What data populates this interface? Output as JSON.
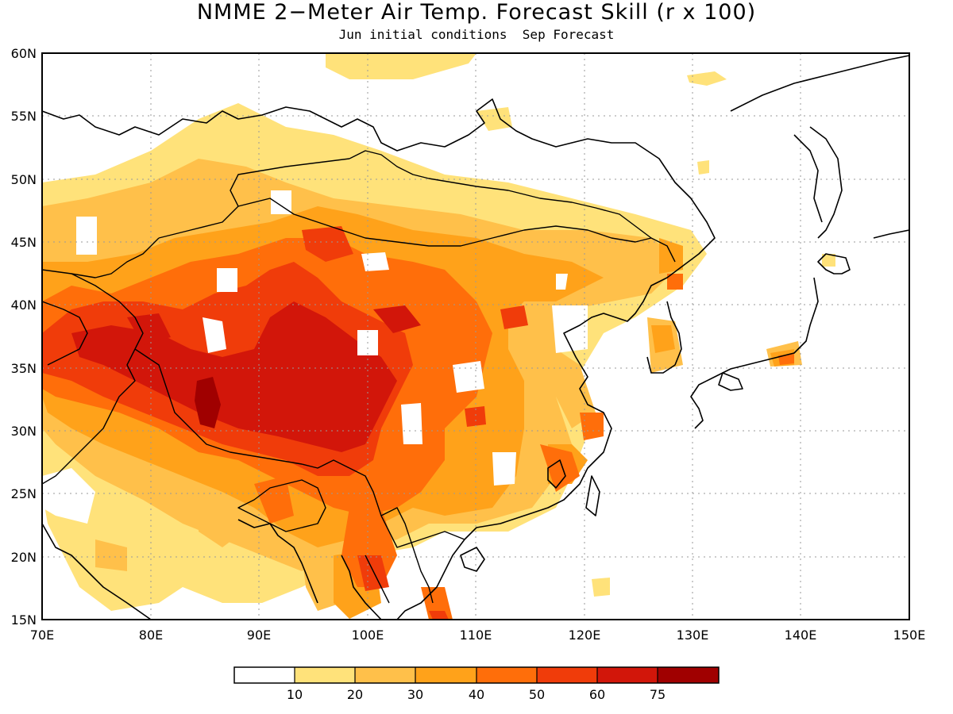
{
  "map": {
    "title": "NMME 2−Meter Air Temp. Forecast Skill (r x 100)",
    "subtitle": "Jun initial conditions  Sep Forecast",
    "lat_labels": [
      "60N",
      "55N",
      "50N",
      "45N",
      "40N",
      "35N",
      "30N",
      "25N",
      "20N",
      "15N"
    ],
    "lon_labels": [
      "70E",
      "80E",
      "90E",
      "100E",
      "110E",
      "120E",
      "130E",
      "140E",
      "150E"
    ],
    "extent": {
      "lon": [
        70,
        150
      ],
      "lat": [
        15,
        60
      ]
    }
  },
  "colorbar": {
    "levels": [
      10,
      20,
      30,
      40,
      50,
      60,
      75
    ],
    "labels": [
      "10",
      "20",
      "30",
      "40",
      "50",
      "60",
      "75"
    ],
    "colors": [
      "#ffffff",
      "#ffe27a",
      "#ffc04a",
      "#ffa21a",
      "#ff6e0a",
      "#f03c0a",
      "#d2160a",
      "#a00000"
    ]
  }
}
